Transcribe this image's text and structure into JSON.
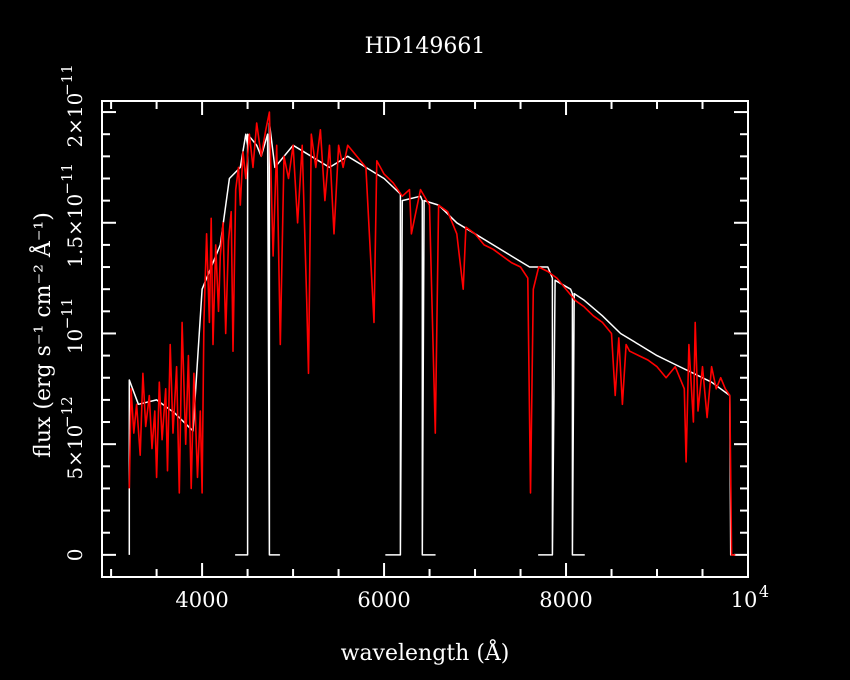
{
  "chart_data": {
    "type": "line",
    "title": "HD149661",
    "xlabel": "wavelength (Å)",
    "ylabel": "flux (erg s⁻¹ cm⁻² Å⁻¹)",
    "xlim": [
      2900,
      10000
    ],
    "ylim": [
      -1e-12,
      2.05e-11
    ],
    "x_ticks": [
      {
        "value": 4000,
        "label": "4000"
      },
      {
        "value": 6000,
        "label": "6000"
      },
      {
        "value": 8000,
        "label": "8000"
      },
      {
        "value": 10000,
        "label": "10",
        "exp": "4"
      }
    ],
    "y_ticks": [
      {
        "value": 0,
        "label": "0",
        "exp": ""
      },
      {
        "value": 5e-12,
        "label": "5×10",
        "exp": "−12"
      },
      {
        "value": 1e-11,
        "label": "10",
        "exp": "−11"
      },
      {
        "value": 1.5e-11,
        "label": "1.5×10",
        "exp": "−11"
      },
      {
        "value": 2e-11,
        "label": "2×10",
        "exp": "−11"
      }
    ],
    "series": [
      {
        "color": "#ffffff",
        "points": [
          [
            3200,
            0
          ],
          [
            3200,
            7.9e-12
          ],
          [
            3300,
            6.8e-12
          ],
          [
            3500,
            7e-12
          ],
          [
            3700,
            6.4e-12
          ],
          [
            3900,
            5.6e-12
          ],
          [
            4000,
            1.2e-11
          ],
          [
            4200,
            1.4e-11
          ],
          [
            4300,
            1.7e-11
          ],
          [
            4420,
            1.75e-11
          ],
          [
            4480,
            1.9e-11
          ],
          [
            4500,
            1.85e-11
          ],
          [
            4500,
            0
          ],
          [
            4370,
            0
          ],
          [
            4500,
            0
          ],
          [
            4500,
            1.9e-11
          ],
          [
            4600,
            1.85e-11
          ],
          [
            4650,
            1.8e-11
          ],
          [
            4720,
            1.9e-11
          ],
          [
            4740,
            0
          ],
          [
            4850,
            0
          ],
          [
            4740,
            0
          ],
          [
            4740,
            1.95e-11
          ],
          [
            4800,
            1.75e-11
          ],
          [
            5000,
            1.85e-11
          ],
          [
            5200,
            1.8e-11
          ],
          [
            5400,
            1.75e-11
          ],
          [
            5600,
            1.8e-11
          ],
          [
            5800,
            1.75e-11
          ],
          [
            6000,
            1.7e-11
          ],
          [
            6180,
            1.63e-11
          ],
          [
            6180,
            0
          ],
          [
            6020,
            0
          ],
          [
            6180,
            0
          ],
          [
            6200,
            1.6e-11
          ],
          [
            6400,
            1.62e-11
          ],
          [
            6420,
            1.6e-11
          ],
          [
            6420,
            0
          ],
          [
            6560,
            0
          ],
          [
            6420,
            0
          ],
          [
            6440,
            1.6e-11
          ],
          [
            6600,
            1.58e-11
          ],
          [
            6800,
            1.5e-11
          ],
          [
            7000,
            1.45e-11
          ],
          [
            7200,
            1.4e-11
          ],
          [
            7400,
            1.35e-11
          ],
          [
            7600,
            1.3e-11
          ],
          [
            7800,
            1.3e-11
          ],
          [
            7850,
            1.25e-11
          ],
          [
            7850,
            0
          ],
          [
            7700,
            0
          ],
          [
            7850,
            0
          ],
          [
            7880,
            1.24e-11
          ],
          [
            8050,
            1.2e-11
          ],
          [
            8070,
            1.18e-11
          ],
          [
            8070,
            0
          ],
          [
            8200,
            0
          ],
          [
            8070,
            0
          ],
          [
            8090,
            1.18e-11
          ],
          [
            8200,
            1.15e-11
          ],
          [
            8400,
            1.08e-11
          ],
          [
            8600,
            1e-11
          ],
          [
            8800,
            9.5e-12
          ],
          [
            9000,
            9e-12
          ],
          [
            9200,
            8.6e-12
          ],
          [
            9400,
            8.2e-12
          ],
          [
            9600,
            7.8e-12
          ],
          [
            9800,
            7.2e-12
          ],
          [
            9810,
            0
          ],
          [
            9850,
            0
          ]
        ]
      },
      {
        "color": "#ff0000",
        "points": [
          [
            3200,
            3e-12
          ],
          [
            3220,
            7.5e-12
          ],
          [
            3250,
            5.5e-12
          ],
          [
            3280,
            6.8e-12
          ],
          [
            3320,
            4.5e-12
          ],
          [
            3350,
            8.2e-12
          ],
          [
            3380,
            5.8e-12
          ],
          [
            3420,
            7.2e-12
          ],
          [
            3450,
            4.8e-12
          ],
          [
            3480,
            6.5e-12
          ],
          [
            3500,
            3.5e-12
          ],
          [
            3530,
            7.8e-12
          ],
          [
            3560,
            5.2e-12
          ],
          [
            3600,
            7.5e-12
          ],
          [
            3620,
            3.8e-12
          ],
          [
            3650,
            9.5e-12
          ],
          [
            3680,
            5.5e-12
          ],
          [
            3720,
            8.5e-12
          ],
          [
            3750,
            2.8e-12
          ],
          [
            3780,
            1.05e-11
          ],
          [
            3820,
            5e-12
          ],
          [
            3850,
            9e-12
          ],
          [
            3880,
            3e-12
          ],
          [
            3910,
            8.2e-12
          ],
          [
            3950,
            3.5e-12
          ],
          [
            3980,
            6.5e-12
          ],
          [
            4000,
            2.8e-12
          ],
          [
            4020,
            1.05e-11
          ],
          [
            4050,
            1.45e-11
          ],
          [
            4080,
            1.05e-11
          ],
          [
            4100,
            1.52e-11
          ],
          [
            4120,
            9.5e-12
          ],
          [
            4150,
            1.4e-11
          ],
          [
            4180,
            1.1e-11
          ],
          [
            4200,
            1.35e-11
          ],
          [
            4230,
            1.5e-11
          ],
          [
            4260,
            1e-11
          ],
          [
            4290,
            1.42e-11
          ],
          [
            4320,
            1.55e-11
          ],
          [
            4340,
            9.2e-12
          ],
          [
            4370,
            1.65e-11
          ],
          [
            4400,
            1.75e-11
          ],
          [
            4420,
            1.58e-11
          ],
          [
            4450,
            1.82e-11
          ],
          [
            4480,
            1.7e-11
          ],
          [
            4520,
            1.9e-11
          ],
          [
            4560,
            1.75e-11
          ],
          [
            4600,
            1.95e-11
          ],
          [
            4650,
            1.8e-11
          ],
          [
            4700,
            1.92e-11
          ],
          [
            4740,
            2e-11
          ],
          [
            4780,
            1.35e-11
          ],
          [
            4820,
            1.85e-11
          ],
          [
            4860,
            9.5e-12
          ],
          [
            4900,
            1.8e-11
          ],
          [
            4950,
            1.7e-11
          ],
          [
            5000,
            1.85e-11
          ],
          [
            5050,
            1.5e-11
          ],
          [
            5100,
            1.85e-11
          ],
          [
            5150,
            1.15e-11
          ],
          [
            5170,
            8.2e-12
          ],
          [
            5200,
            1.9e-11
          ],
          [
            5250,
            1.75e-11
          ],
          [
            5300,
            1.92e-11
          ],
          [
            5350,
            1.6e-11
          ],
          [
            5400,
            1.85e-11
          ],
          [
            5450,
            1.45e-11
          ],
          [
            5500,
            1.85e-11
          ],
          [
            5550,
            1.75e-11
          ],
          [
            5600,
            1.85e-11
          ],
          [
            5700,
            1.8e-11
          ],
          [
            5800,
            1.75e-11
          ],
          [
            5890,
            1.05e-11
          ],
          [
            5920,
            1.78e-11
          ],
          [
            6000,
            1.72e-11
          ],
          [
            6100,
            1.68e-11
          ],
          [
            6200,
            1.62e-11
          ],
          [
            6280,
            1.65e-11
          ],
          [
            6300,
            1.45e-11
          ],
          [
            6400,
            1.65e-11
          ],
          [
            6500,
            1.58e-11
          ],
          [
            6563,
            5.5e-12
          ],
          [
            6600,
            1.58e-11
          ],
          [
            6700,
            1.55e-11
          ],
          [
            6800,
            1.45e-11
          ],
          [
            6870,
            1.2e-11
          ],
          [
            6900,
            1.48e-11
          ],
          [
            7000,
            1.45e-11
          ],
          [
            7100,
            1.4e-11
          ],
          [
            7200,
            1.38e-11
          ],
          [
            7300,
            1.35e-11
          ],
          [
            7400,
            1.32e-11
          ],
          [
            7500,
            1.3e-11
          ],
          [
            7580,
            1.25e-11
          ],
          [
            7610,
            2.8e-12
          ],
          [
            7640,
            1.2e-11
          ],
          [
            7700,
            1.3e-11
          ],
          [
            7800,
            1.28e-11
          ],
          [
            7900,
            1.25e-11
          ],
          [
            8000,
            1.2e-11
          ],
          [
            8100,
            1.15e-11
          ],
          [
            8200,
            1.12e-11
          ],
          [
            8300,
            1.08e-11
          ],
          [
            8400,
            1.05e-11
          ],
          [
            8500,
            1e-11
          ],
          [
            8540,
            7.2e-12
          ],
          [
            8580,
            9.8e-12
          ],
          [
            8620,
            6.8e-12
          ],
          [
            8660,
            9.5e-12
          ],
          [
            8700,
            9.2e-12
          ],
          [
            8800,
            9e-12
          ],
          [
            8900,
            8.8e-12
          ],
          [
            9000,
            8.5e-12
          ],
          [
            9100,
            8e-12
          ],
          [
            9200,
            8.5e-12
          ],
          [
            9300,
            7.5e-12
          ],
          [
            9320,
            4.2e-12
          ],
          [
            9350,
            9.5e-12
          ],
          [
            9400,
            6e-12
          ],
          [
            9420,
            1.05e-11
          ],
          [
            9450,
            6.5e-12
          ],
          [
            9500,
            8.5e-12
          ],
          [
            9550,
            6.2e-12
          ],
          [
            9600,
            8.5e-12
          ],
          [
            9650,
            7.5e-12
          ],
          [
            9700,
            8e-12
          ],
          [
            9750,
            7.5e-12
          ],
          [
            9800,
            7.2e-12
          ],
          [
            9820,
            0
          ],
          [
            9860,
            0
          ]
        ]
      }
    ]
  }
}
